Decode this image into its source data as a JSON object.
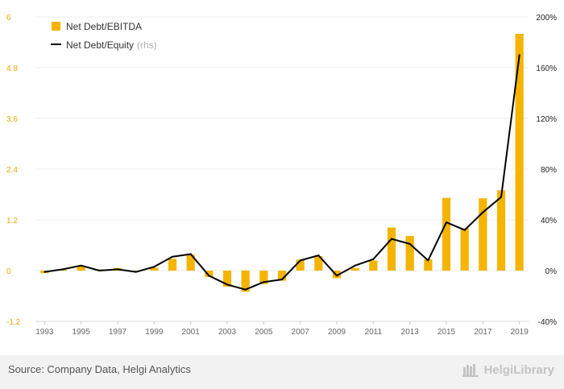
{
  "chart_data": {
    "type": "bar+line",
    "title": "",
    "x": [
      1993,
      1994,
      1995,
      1996,
      1997,
      1998,
      1999,
      2000,
      2001,
      2002,
      2003,
      2004,
      2005,
      2006,
      2007,
      2008,
      2009,
      2010,
      2011,
      2012,
      2013,
      2014,
      2015,
      2016,
      2017,
      2018,
      2019
    ],
    "series": [
      {
        "name": "Net Debt/EBITDA",
        "type": "bar",
        "axis": "left",
        "color": "#f5b400",
        "values": [
          -0.06,
          0.02,
          0.12,
          0.03,
          0.06,
          -0.03,
          0.07,
          0.28,
          0.38,
          -0.15,
          -0.38,
          -0.5,
          -0.32,
          -0.24,
          0.26,
          0.34,
          -0.18,
          0.06,
          0.24,
          1.02,
          0.82,
          0.27,
          1.72,
          1.0,
          1.71,
          1.9,
          5.6
        ]
      },
      {
        "name": "Net Debt/Equity",
        "name_suffix": "(rhs)",
        "type": "line",
        "axis": "right",
        "color": "#000000",
        "values": [
          -1,
          1,
          4,
          0,
          1,
          -1,
          3,
          11,
          13,
          -4,
          -11,
          -15,
          -9,
          -7,
          8,
          12,
          -4,
          4,
          9,
          25,
          21,
          8,
          38,
          32,
          46,
          58,
          170
        ]
      }
    ],
    "y_left": {
      "min": -1.2,
      "max": 6,
      "ticks": [
        "-1.2",
        "0",
        "1.2",
        "2.4",
        "3.6",
        "4.8",
        "6"
      ]
    },
    "y_right": {
      "min": -40,
      "max": 200,
      "ticks": [
        "-40%",
        "0%",
        "40%",
        "80%",
        "120%",
        "160%",
        "200%"
      ]
    },
    "x_tick_labels": [
      "1993",
      "1995",
      "1997",
      "1999",
      "2001",
      "2003",
      "2005",
      "2007",
      "2009",
      "2011",
      "2013",
      "2015",
      "2017",
      "2019"
    ],
    "legend_position": "top-left",
    "grid": true
  },
  "footer": {
    "source": "Source: Company Data, Helgi Analytics",
    "brand": "HelgiLibrary"
  }
}
